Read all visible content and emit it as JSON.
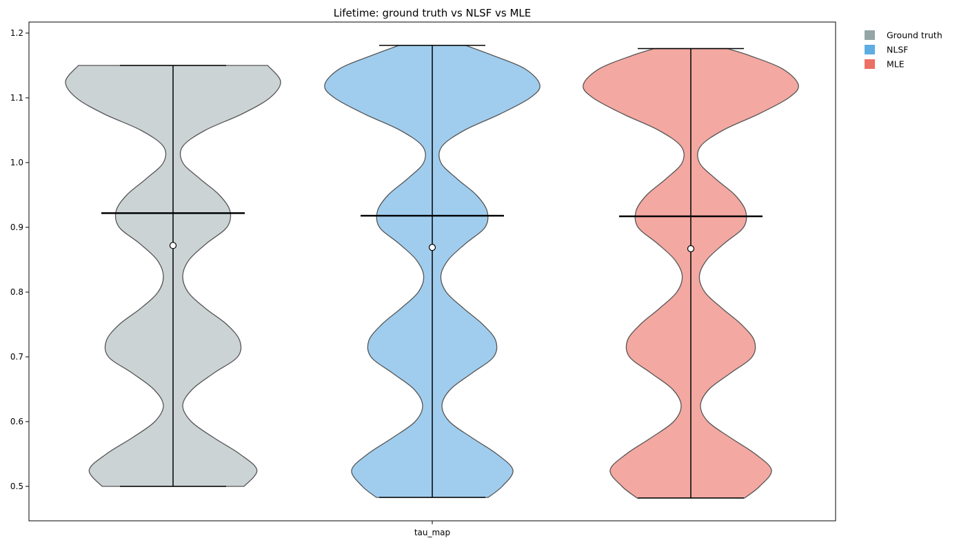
{
  "chart_data": {
    "type": "violin",
    "title": "Lifetime: ground truth vs NLSF vs MLE",
    "xlabel": "",
    "ylabel": "",
    "categories": [
      "tau_map"
    ],
    "ylim": [
      0.45,
      1.22
    ],
    "yticks": [
      "0.5",
      "0.6",
      "0.7",
      "0.8",
      "0.9",
      "1.0",
      "1.1",
      "1.2"
    ],
    "grid": false,
    "legend_position": "outside-top-right",
    "series": [
      {
        "name": "Ground truth",
        "color": "#95a5a6",
        "fill": "#cbd3d5",
        "min": 0.5,
        "max": 1.15,
        "mean": 0.922,
        "median": 0.872,
        "density": [
          [
            0.5,
            0.66
          ],
          [
            0.525,
            0.78
          ],
          [
            0.55,
            0.62
          ],
          [
            0.575,
            0.38
          ],
          [
            0.6,
            0.17
          ],
          [
            0.625,
            0.09
          ],
          [
            0.65,
            0.18
          ],
          [
            0.675,
            0.38
          ],
          [
            0.7,
            0.6
          ],
          [
            0.725,
            0.62
          ],
          [
            0.75,
            0.5
          ],
          [
            0.775,
            0.3
          ],
          [
            0.8,
            0.14
          ],
          [
            0.825,
            0.09
          ],
          [
            0.85,
            0.15
          ],
          [
            0.875,
            0.31
          ],
          [
            0.9,
            0.5
          ],
          [
            0.925,
            0.53
          ],
          [
            0.95,
            0.43
          ],
          [
            0.975,
            0.25
          ],
          [
            1.0,
            0.09
          ],
          [
            1.025,
            0.09
          ],
          [
            1.05,
            0.3
          ],
          [
            1.075,
            0.64
          ],
          [
            1.1,
            0.9
          ],
          [
            1.125,
            1.0
          ],
          [
            1.15,
            0.88
          ]
        ]
      },
      {
        "name": "NLSF",
        "color": "#5dade2",
        "fill": "#a0cdee",
        "min": 0.483,
        "max": 1.181,
        "mean": 0.918,
        "median": 0.869,
        "density": [
          [
            0.483,
            0.52
          ],
          [
            0.5,
            0.65
          ],
          [
            0.525,
            0.75
          ],
          [
            0.55,
            0.6
          ],
          [
            0.575,
            0.37
          ],
          [
            0.6,
            0.16
          ],
          [
            0.625,
            0.09
          ],
          [
            0.65,
            0.17
          ],
          [
            0.675,
            0.37
          ],
          [
            0.7,
            0.57
          ],
          [
            0.725,
            0.59
          ],
          [
            0.75,
            0.47
          ],
          [
            0.775,
            0.29
          ],
          [
            0.8,
            0.13
          ],
          [
            0.825,
            0.08
          ],
          [
            0.85,
            0.15
          ],
          [
            0.875,
            0.31
          ],
          [
            0.9,
            0.49
          ],
          [
            0.925,
            0.51
          ],
          [
            0.95,
            0.41
          ],
          [
            0.975,
            0.23
          ],
          [
            1.0,
            0.08
          ],
          [
            1.025,
            0.09
          ],
          [
            1.05,
            0.3
          ],
          [
            1.075,
            0.63
          ],
          [
            1.1,
            0.91
          ],
          [
            1.12,
            1.0
          ],
          [
            1.145,
            0.86
          ],
          [
            1.165,
            0.57
          ],
          [
            1.181,
            0.31
          ]
        ]
      },
      {
        "name": "MLE",
        "color": "#ec7063",
        "fill": "#f3a8a1",
        "min": 0.482,
        "max": 1.176,
        "mean": 0.917,
        "median": 0.867,
        "density": [
          [
            0.482,
            0.5
          ],
          [
            0.5,
            0.64
          ],
          [
            0.525,
            0.75
          ],
          [
            0.55,
            0.6
          ],
          [
            0.575,
            0.37
          ],
          [
            0.6,
            0.16
          ],
          [
            0.625,
            0.09
          ],
          [
            0.65,
            0.17
          ],
          [
            0.675,
            0.37
          ],
          [
            0.7,
            0.57
          ],
          [
            0.725,
            0.59
          ],
          [
            0.75,
            0.47
          ],
          [
            0.775,
            0.29
          ],
          [
            0.8,
            0.13
          ],
          [
            0.825,
            0.08
          ],
          [
            0.85,
            0.15
          ],
          [
            0.875,
            0.31
          ],
          [
            0.9,
            0.49
          ],
          [
            0.925,
            0.51
          ],
          [
            0.95,
            0.41
          ],
          [
            0.975,
            0.23
          ],
          [
            1.0,
            0.08
          ],
          [
            1.025,
            0.09
          ],
          [
            1.05,
            0.3
          ],
          [
            1.075,
            0.63
          ],
          [
            1.1,
            0.91
          ],
          [
            1.12,
            1.0
          ],
          [
            1.145,
            0.85
          ],
          [
            1.165,
            0.55
          ],
          [
            1.176,
            0.34
          ]
        ]
      }
    ]
  }
}
